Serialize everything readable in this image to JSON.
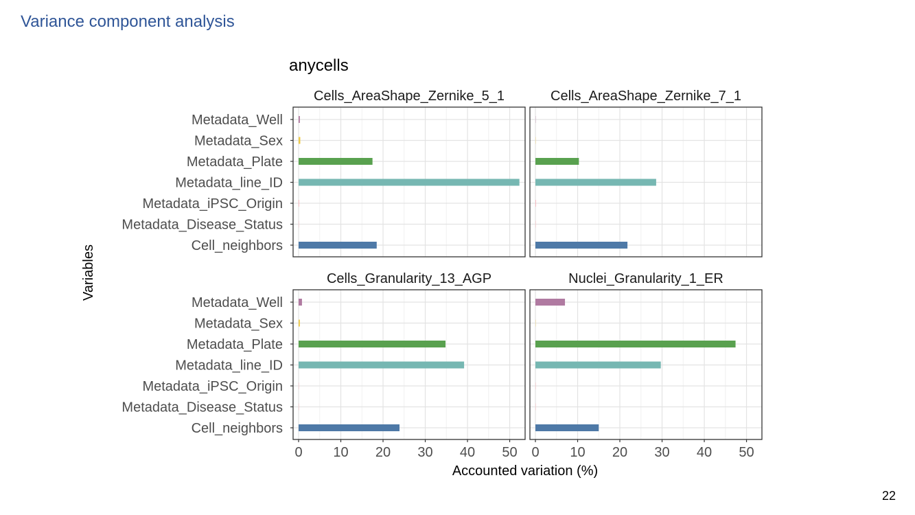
{
  "slide": {
    "title": "Variance component analysis",
    "page_number": "22"
  },
  "chart_data": {
    "type": "bar",
    "orientation": "horizontal",
    "title": "anycells",
    "xlabel": "Accounted variation (%)",
    "ylabel": "Variables",
    "xlim": [
      0,
      53
    ],
    "xticks": [
      0,
      10,
      20,
      30,
      40,
      50
    ],
    "grid": true,
    "categories": [
      "Metadata_Well",
      "Metadata_Sex",
      "Metadata_Plate",
      "Metadata_line_ID",
      "Metadata_iPSC_Origin",
      "Metadata_Disease_Status",
      "Cell_neighbors"
    ],
    "colors": [
      "#b07aa1",
      "#edc948",
      "#59a14f",
      "#76b7b2",
      "#ff9da7",
      "#ff9da7",
      "#4e79a7"
    ],
    "panels": [
      {
        "name": "Cells_AreaShape_Zernike_5_1",
        "values": [
          0.3,
          0.4,
          17.5,
          52.3,
          0.1,
          0.05,
          18.5
        ]
      },
      {
        "name": "Cells_AreaShape_Zernike_7_1",
        "values": [
          0.05,
          0.05,
          10.3,
          28.6,
          0.1,
          0.05,
          21.8
        ]
      },
      {
        "name": "Cells_Granularity_13_AGP",
        "values": [
          0.8,
          0.3,
          34.8,
          39.2,
          0.05,
          0.05,
          23.9
        ]
      },
      {
        "name": "Nuclei_Granularity_1_ER",
        "values": [
          7.0,
          0.05,
          47.4,
          29.7,
          0.05,
          0.05,
          15.0
        ]
      }
    ]
  }
}
